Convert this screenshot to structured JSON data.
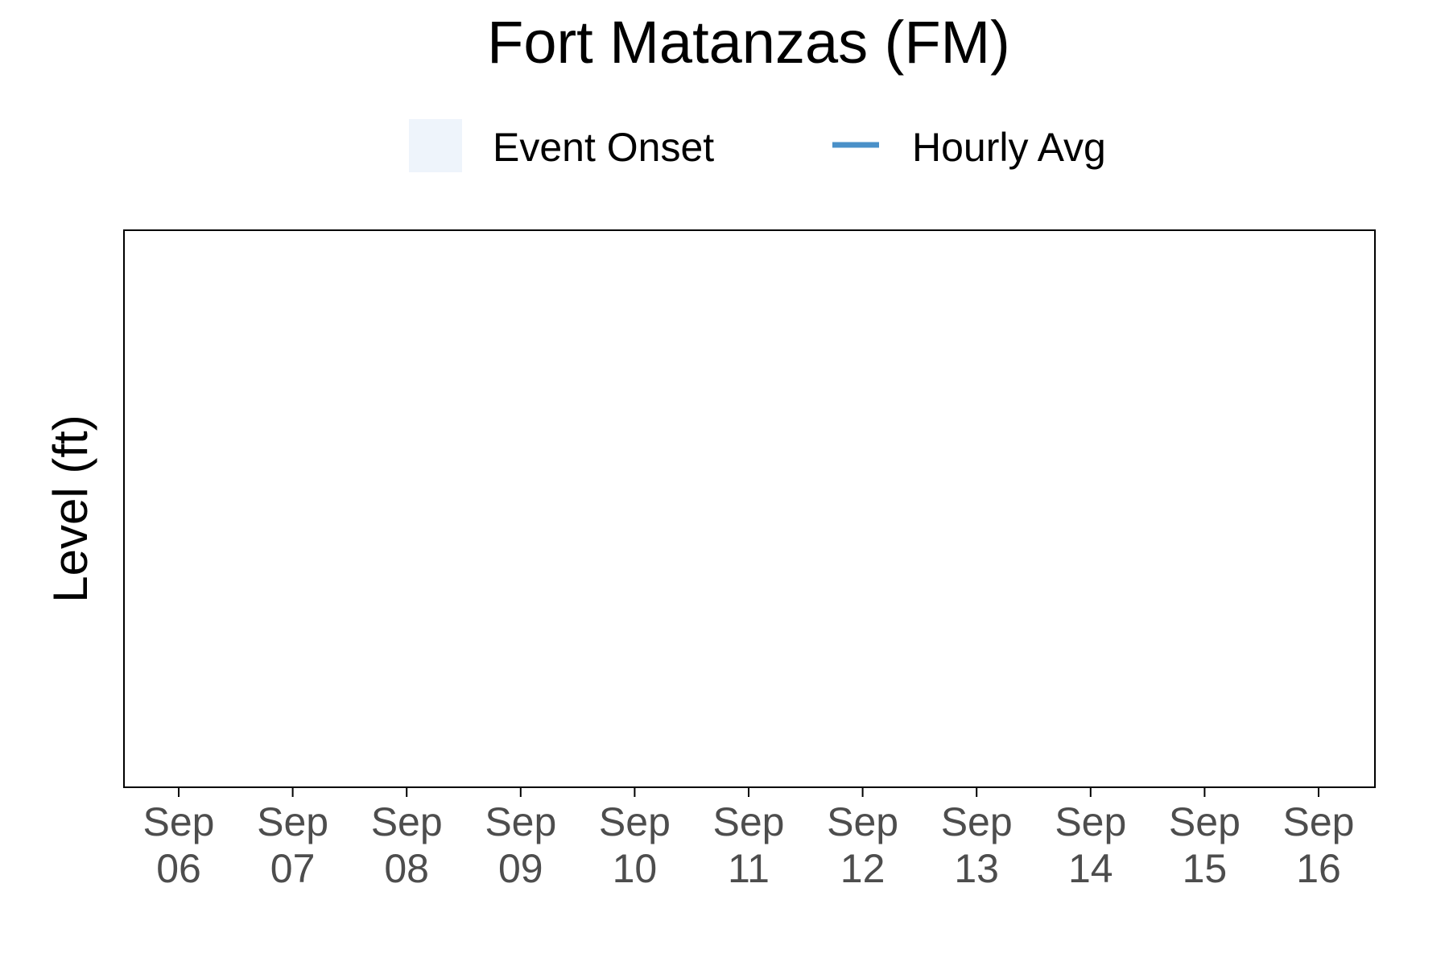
{
  "chart_data": {
    "type": "line",
    "title": "Fort Matanzas (FM)",
    "xlabel": "",
    "ylabel": "Level (ft)",
    "x_ticks": [
      {
        "month": "Sep",
        "day": "06"
      },
      {
        "month": "Sep",
        "day": "07"
      },
      {
        "month": "Sep",
        "day": "08"
      },
      {
        "month": "Sep",
        "day": "09"
      },
      {
        "month": "Sep",
        "day": "10"
      },
      {
        "month": "Sep",
        "day": "11"
      },
      {
        "month": "Sep",
        "day": "12"
      },
      {
        "month": "Sep",
        "day": "13"
      },
      {
        "month": "Sep",
        "day": "14"
      },
      {
        "month": "Sep",
        "day": "15"
      },
      {
        "month": "Sep",
        "day": "16"
      }
    ],
    "legend": {
      "position": "top",
      "items": [
        {
          "label": "Event Onset",
          "kind": "fill",
          "color": "#eef4fb"
        },
        {
          "label": "Hourly Avg",
          "kind": "line",
          "color": "#4a90c8"
        }
      ]
    },
    "series": [
      {
        "name": "Hourly Avg",
        "values": []
      }
    ],
    "grid": false,
    "colors": {
      "title": "#000000",
      "axis_text": "#4d4d4d",
      "frame": "#000000"
    }
  }
}
